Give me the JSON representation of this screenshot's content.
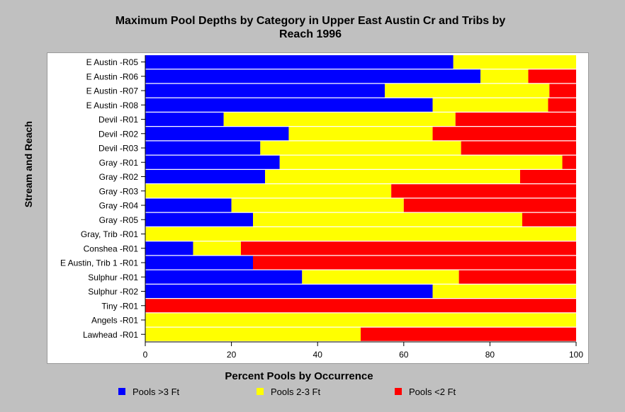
{
  "chart_data": {
    "type": "bar",
    "orientation": "horizontal",
    "stacked": true,
    "title_lines": [
      "Maximum Pool Depths by Category in Upper East Austin Cr and Tribs by",
      "Reach 1996"
    ],
    "xlabel": "Percent Pools by Occurrence",
    "ylabel": "Stream and Reach",
    "xlim": [
      0,
      100
    ],
    "xticks": [
      "0",
      "20",
      "40",
      "60",
      "80",
      "100"
    ],
    "legend_position": "bottom",
    "categories": [
      "E Austin -R05",
      "E Austin -R06",
      "E Austin -R07",
      "E Austin -R08",
      "Devil -R01",
      "Devil -R02",
      "Devil -R03",
      "Gray -R01",
      "Gray -R02",
      "Gray -R03",
      "Gray -R04",
      "Gray -R05",
      "Gray, Trib -R01",
      "Conshea -R01",
      "E Austin, Trib 1 -R01",
      "Sulphur -R01",
      "Sulphur -R02",
      "Tiny -R01",
      "Angels -R01",
      "Lawhead -R01"
    ],
    "series": [
      {
        "name": "Pools >3 Ft",
        "color": "#0000ff",
        "values": [
          71.5,
          77.8,
          55.6,
          66.7,
          18.2,
          33.3,
          26.7,
          31.2,
          27.8,
          0,
          20,
          25,
          0,
          11.1,
          25,
          36.4,
          66.7,
          0,
          0,
          0
        ]
      },
      {
        "name": "Pools 2-3 Ft",
        "color": "#ffff00",
        "values": [
          28.5,
          11.1,
          38.2,
          26.8,
          53.8,
          33.4,
          46.6,
          65.6,
          59.2,
          57.1,
          40,
          62.5,
          100,
          11.1,
          0,
          36.4,
          33.3,
          0,
          100,
          50
        ]
      },
      {
        "name": "Pools <2 Ft",
        "color": "#ff0000",
        "values": [
          0,
          11.1,
          6.2,
          6.5,
          28,
          33.3,
          26.7,
          3.2,
          13,
          42.9,
          40,
          12.5,
          0,
          77.8,
          75,
          27.2,
          0,
          100,
          0,
          50
        ]
      }
    ]
  }
}
